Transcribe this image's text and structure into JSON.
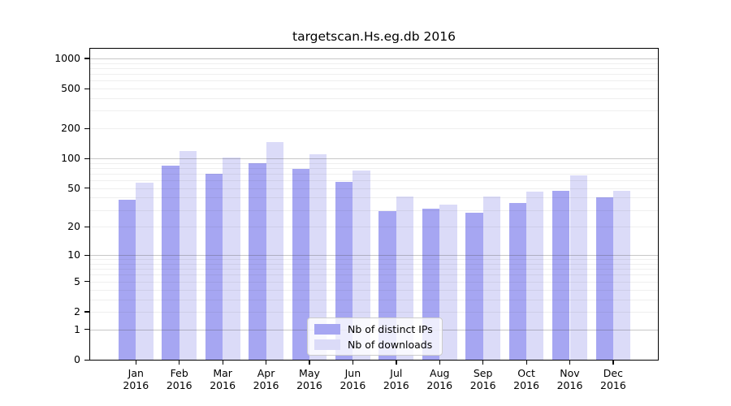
{
  "chart_data": {
    "type": "bar",
    "title": "targetscan.Hs.eg.db 2016",
    "categories": [
      "Jan",
      "Feb",
      "Mar",
      "Apr",
      "May",
      "Jun",
      "Jul",
      "Aug",
      "Sep",
      "Oct",
      "Nov",
      "Dec"
    ],
    "category_year": "2016",
    "series": [
      {
        "name": "Nb of distinct IPs",
        "color": "#a6a6f2",
        "values": [
          38,
          84,
          70,
          90,
          79,
          58,
          29,
          31,
          28,
          35,
          47,
          40
        ]
      },
      {
        "name": "Nb of downloads",
        "color": "#dbdbf8",
        "values": [
          57,
          119,
          102,
          145,
          110,
          75,
          41,
          34,
          41,
          46,
          68,
          47
        ]
      }
    ],
    "ylabel": "",
    "xlabel": "",
    "scale": "log10(value+1), 0 at baseline",
    "ylim": [
      0,
      1270
    ],
    "y_ticks": [
      {
        "label": "1000",
        "value": 1000
      },
      {
        "label": "500",
        "value": 500
      },
      {
        "label": "200",
        "value": 200
      },
      {
        "label": "100",
        "value": 100
      },
      {
        "label": "50",
        "value": 50
      },
      {
        "label": "20",
        "value": 20
      },
      {
        "label": "10",
        "value": 10
      },
      {
        "label": "5",
        "value": 5
      },
      {
        "label": "2",
        "value": 2
      },
      {
        "label": "1",
        "value": 1
      },
      {
        "label": "0",
        "value": 0
      }
    ],
    "major_grid_values": [
      1,
      10,
      100,
      1000
    ],
    "minor_grid_values": [
      2,
      3,
      4,
      5,
      6,
      7,
      8,
      9,
      20,
      30,
      40,
      50,
      60,
      70,
      80,
      90,
      200,
      300,
      400,
      500,
      600,
      700,
      800,
      900
    ],
    "grid": true,
    "legend_position": "bottom-center",
    "colors": {
      "axis": "#000000",
      "major_grid": "#b5b5b5",
      "minor_grid": "#e9e9e9",
      "legend_border": "#cccccc",
      "background": "#ffffff"
    }
  }
}
